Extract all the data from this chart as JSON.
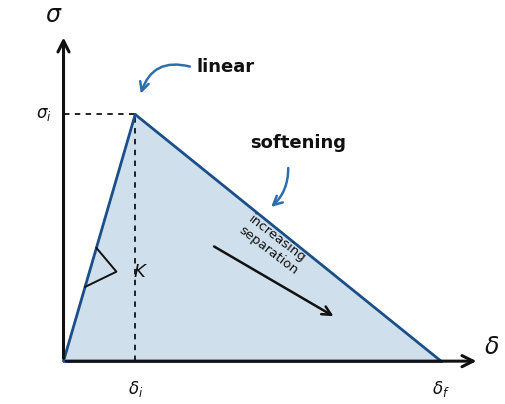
{
  "background_color": "#ffffff",
  "triangle_fill_color": "#cfe0ec",
  "line_color": "#1a4f8a",
  "line_width": 2.0,
  "axis_color": "#111111",
  "annotation_color": "#2d6fad",
  "arrow_color": "#111111",
  "dotted_line_color": "#111111",
  "ox": 0.13,
  "oy": 0.1,
  "xp": 0.28,
  "yp": 0.78,
  "xe": 0.92,
  "ye": 0.1,
  "xlim": [
    0.0,
    1.05
  ],
  "ylim": [
    0.0,
    1.05
  ]
}
